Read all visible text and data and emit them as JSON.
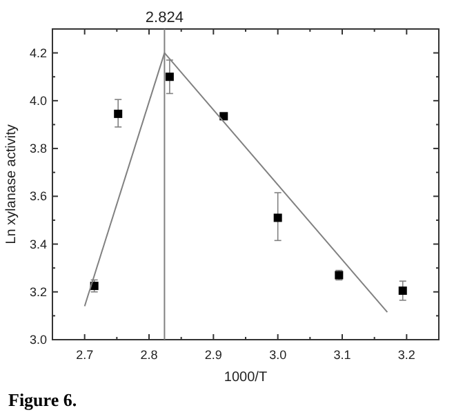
{
  "chart_data": {
    "type": "scatter",
    "xlabel": "1000/T",
    "ylabel": "Ln xylanase activity",
    "annotations": [
      "Figure 6."
    ],
    "xlim": [
      2.65,
      3.25
    ],
    "ylim": [
      3.0,
      4.3
    ],
    "xticks": [
      2.7,
      2.8,
      2.9,
      {
        "value": 3.0,
        "label": "3.0"
      },
      3.1,
      3.2
    ],
    "yticks": [
      {
        "value": 3.0,
        "label": "3.0"
      },
      3.2,
      3.4,
      3.6,
      3.8,
      {
        "value": 4.0,
        "label": "4.0"
      },
      4.2
    ],
    "marker": "square",
    "grid": false,
    "series": [
      {
        "color": "#000000",
        "x": [
          2.715,
          2.752,
          2.832,
          2.916,
          3.0,
          3.095,
          3.194
        ],
        "values": [
          3.225,
          3.945,
          4.1,
          3.935,
          3.51,
          3.27,
          3.205
        ],
        "errors": [
          [
            3.2,
            3.25
          ],
          [
            3.89,
            4.005
          ],
          [
            4.03,
            4.17
          ],
          null,
          [
            3.415,
            3.615
          ],
          [
            3.25,
            3.29
          ],
          [
            3.165,
            3.245
          ]
        ]
      },
      {
        "type": "line",
        "color": "#808080",
        "marker": "none",
        "x": [
          2.7,
          2.824
        ],
        "values": [
          3.14,
          4.2
        ]
      },
      {
        "type": "line",
        "color": "#808080",
        "marker": "none",
        "x": [
          2.824,
          3.17
        ],
        "values": [
          4.2,
          3.115
        ]
      }
    ],
    "ref_lines": [
      {
        "axis": "x",
        "value": 2.824,
        "label": "2.824",
        "color": "#808080"
      }
    ]
  }
}
